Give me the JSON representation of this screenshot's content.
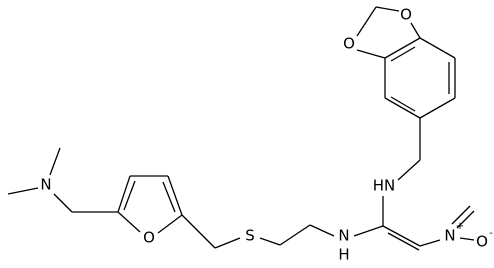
{
  "atoms": [
    {
      "label": "O"
    },
    {
      "label": "O"
    },
    {
      "label": "HN"
    },
    {
      "label": "N",
      "h": "H"
    },
    {
      "label": "N",
      "charge": "+"
    },
    {
      "label": "O",
      "charge": "-"
    },
    {
      "label": "S"
    },
    {
      "label": "O"
    },
    {
      "label": "N"
    }
  ]
}
